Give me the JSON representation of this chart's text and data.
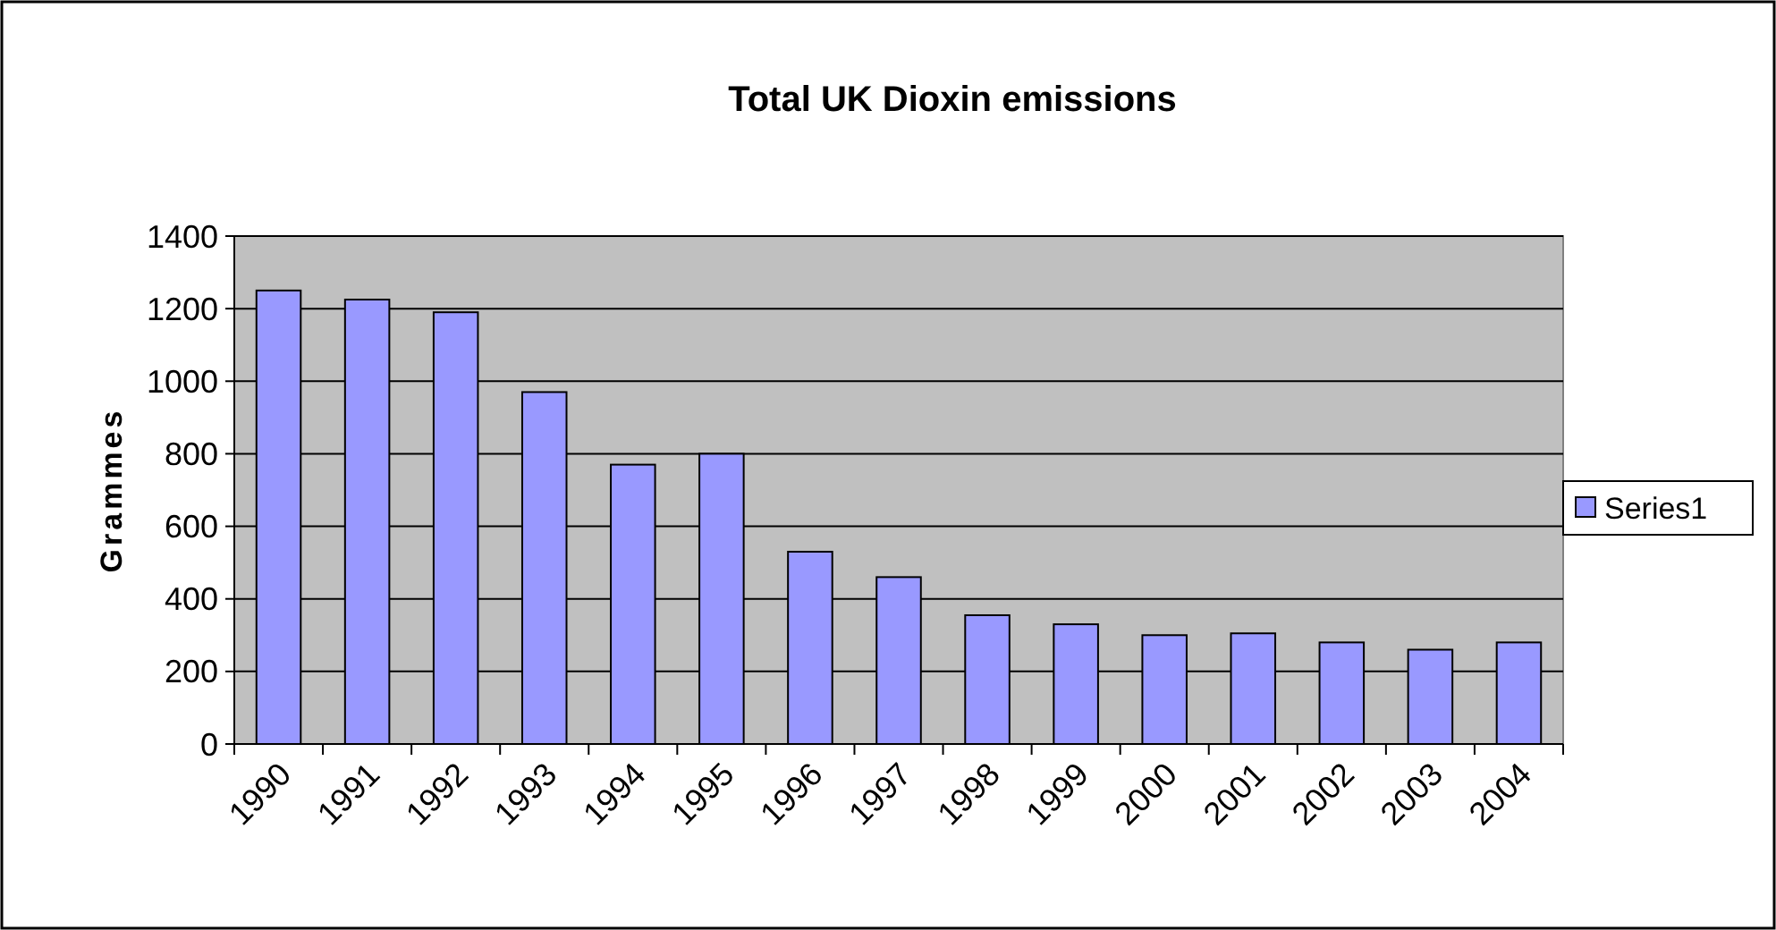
{
  "chart_data": {
    "type": "bar",
    "title": "Total UK Dioxin emissions",
    "ylabel": "Grammes",
    "categories": [
      "1990",
      "1991",
      "1992",
      "1993",
      "1994",
      "1995",
      "1996",
      "1997",
      "1998",
      "1999",
      "2000",
      "2001",
      "2002",
      "2003",
      "2004"
    ],
    "series": [
      {
        "name": "Series1",
        "color": "#9999ff",
        "values": [
          1250,
          1225,
          1190,
          970,
          770,
          800,
          530,
          460,
          355,
          330,
          300,
          305,
          280,
          260,
          280
        ]
      }
    ],
    "ylim": [
      0,
      1400
    ],
    "yticks": [
      0,
      200,
      400,
      600,
      800,
      1000,
      1200,
      1400
    ],
    "grid": "y",
    "legend": "right"
  }
}
